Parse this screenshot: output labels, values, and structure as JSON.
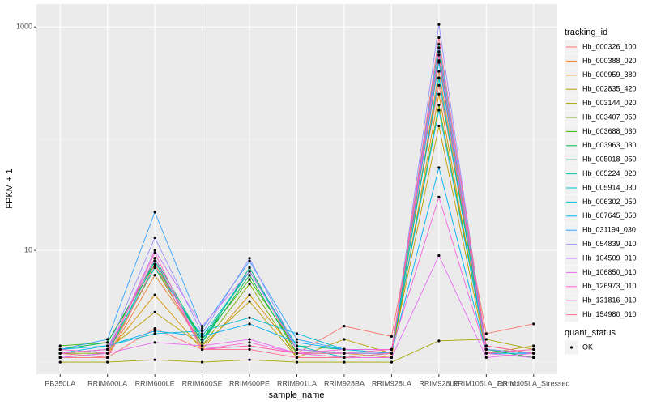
{
  "chart_data": {
    "type": "line",
    "x_label": "sample_name",
    "y_label": "FPKM + 1",
    "categories": [
      "PB350LA",
      "RRIM600LA",
      "RRIM600LE",
      "RRIM600SE",
      "RRIM600PE",
      "RRIM901LA",
      "RRIM928BA",
      "RRIM928LA",
      "RRIM928LE",
      "RRIM105LA_Control",
      "RRIM105LA_Stressed"
    ],
    "log_y": true,
    "ylim": [
      0.78,
      1600
    ],
    "yticks": [
      10,
      1000
    ],
    "grid": true,
    "legend_title": "tracking_id",
    "legend_position": "right",
    "point_color": "#000000",
    "shape_legend": {
      "title": "quant_status",
      "labels": [
        "OK"
      ]
    },
    "series": [
      {
        "name": "Hb_000326_100",
        "color": "#F8766D",
        "values": [
          1.1,
          1.1,
          2.0,
          1.3,
          1.4,
          1.2,
          2.1,
          1.7,
          300,
          1.8,
          2.2
        ]
      },
      {
        "name": "Hb_000388_020",
        "color": "#EA8331",
        "values": [
          1.2,
          1.1,
          6,
          1.5,
          7,
          1.2,
          1.2,
          1.1,
          400,
          1.4,
          1.2
        ]
      },
      {
        "name": "Hb_000959_380",
        "color": "#D89000",
        "values": [
          1.1,
          1.2,
          4,
          1.3,
          4,
          1.2,
          1.1,
          1.1,
          250,
          1.2,
          1.3
        ]
      },
      {
        "name": "Hb_002835_420",
        "color": "#C09B00",
        "values": [
          1.2,
          1.3,
          2.8,
          1.4,
          3.5,
          1.1,
          1.6,
          1.2,
          130,
          1.2,
          1.4
        ]
      },
      {
        "name": "Hb_003144_020",
        "color": "#A3A500",
        "values": [
          1.0,
          1.0,
          1.05,
          1.0,
          1.05,
          1.0,
          1.0,
          1.0,
          1.55,
          1.6,
          1.3
        ]
      },
      {
        "name": "Hb_003407_050",
        "color": "#7CAE00",
        "values": [
          1.2,
          1.2,
          7,
          1.4,
          5,
          1.1,
          1.1,
          1.2,
          200,
          1.3,
          1.1
        ]
      },
      {
        "name": "Hb_003688_030",
        "color": "#39B600",
        "values": [
          1.4,
          1.5,
          7.5,
          1.6,
          5.5,
          1.3,
          1.2,
          1.2,
          500,
          1.3,
          1.2
        ]
      },
      {
        "name": "Hb_003963_030",
        "color": "#00BB4E",
        "values": [
          1.3,
          1.5,
          8,
          1.5,
          6,
          1.2,
          1.2,
          1.2,
          350,
          1.3,
          1.1
        ]
      },
      {
        "name": "Hb_005018_050",
        "color": "#00BF7D",
        "values": [
          1.2,
          1.3,
          8.5,
          1.6,
          6.5,
          1.4,
          1.3,
          1.2,
          600,
          1.2,
          1.2
        ]
      },
      {
        "name": "Hb_005224_020",
        "color": "#00C1A3",
        "values": [
          1.1,
          1.2,
          8,
          1.5,
          7,
          1.3,
          1.2,
          1.2,
          700,
          1.3,
          1.2
        ]
      },
      {
        "name": "Hb_005914_030",
        "color": "#00BFC4",
        "values": [
          1.2,
          1.3,
          7,
          1.7,
          6.5,
          1.4,
          1.1,
          1.2,
          350,
          1.2,
          1.1
        ]
      },
      {
        "name": "Hb_006302_050",
        "color": "#00BAE0",
        "values": [
          1.3,
          1.4,
          1.8,
          1.9,
          2.5,
          1.8,
          1.3,
          1.3,
          180,
          1.3,
          1.2
        ]
      },
      {
        "name": "Hb_007645_050",
        "color": "#00B0F6",
        "values": [
          1.2,
          1.4,
          1.9,
          1.7,
          2.2,
          1.5,
          1.3,
          1.2,
          55,
          1.2,
          1.2
        ]
      },
      {
        "name": "Hb_031194_030",
        "color": "#35A2FF",
        "values": [
          1.3,
          1.6,
          22,
          2.0,
          8,
          1.6,
          1.3,
          1.3,
          480,
          1.3,
          1.2
        ]
      },
      {
        "name": "Hb_054839_010",
        "color": "#9590FF",
        "values": [
          1.2,
          1.3,
          13,
          1.8,
          8.5,
          1.3,
          1.2,
          1.2,
          1050,
          1.3,
          1.2
        ]
      },
      {
        "name": "Hb_104509_010",
        "color": "#C77CFF",
        "values": [
          1.1,
          1.2,
          10,
          2.1,
          6.5,
          1.3,
          1.2,
          1.2,
          650,
          1.4,
          1.2
        ]
      },
      {
        "name": "Hb_106850_010",
        "color": "#E76BF3",
        "values": [
          1.1,
          1.2,
          1.5,
          1.4,
          1.6,
          1.2,
          1.1,
          1.1,
          9,
          1.1,
          1.2
        ]
      },
      {
        "name": "Hb_126973_010",
        "color": "#FA62DB",
        "values": [
          1.2,
          1.3,
          8.5,
          1.3,
          1.5,
          1.2,
          1.3,
          1.3,
          30,
          1.2,
          1.1
        ]
      },
      {
        "name": "Hb_131816_010",
        "color": "#FF62BC",
        "values": [
          1.3,
          1.2,
          9.5,
          1.3,
          1.4,
          1.2,
          1.2,
          1.3,
          560,
          1.2,
          1.3
        ]
      },
      {
        "name": "Hb_154980_010",
        "color": "#FF6C91",
        "values": [
          1.2,
          1.1,
          7.5,
          1.3,
          1.3,
          1.1,
          1.1,
          1.2,
          800,
          1.4,
          1.2
        ]
      }
    ]
  }
}
